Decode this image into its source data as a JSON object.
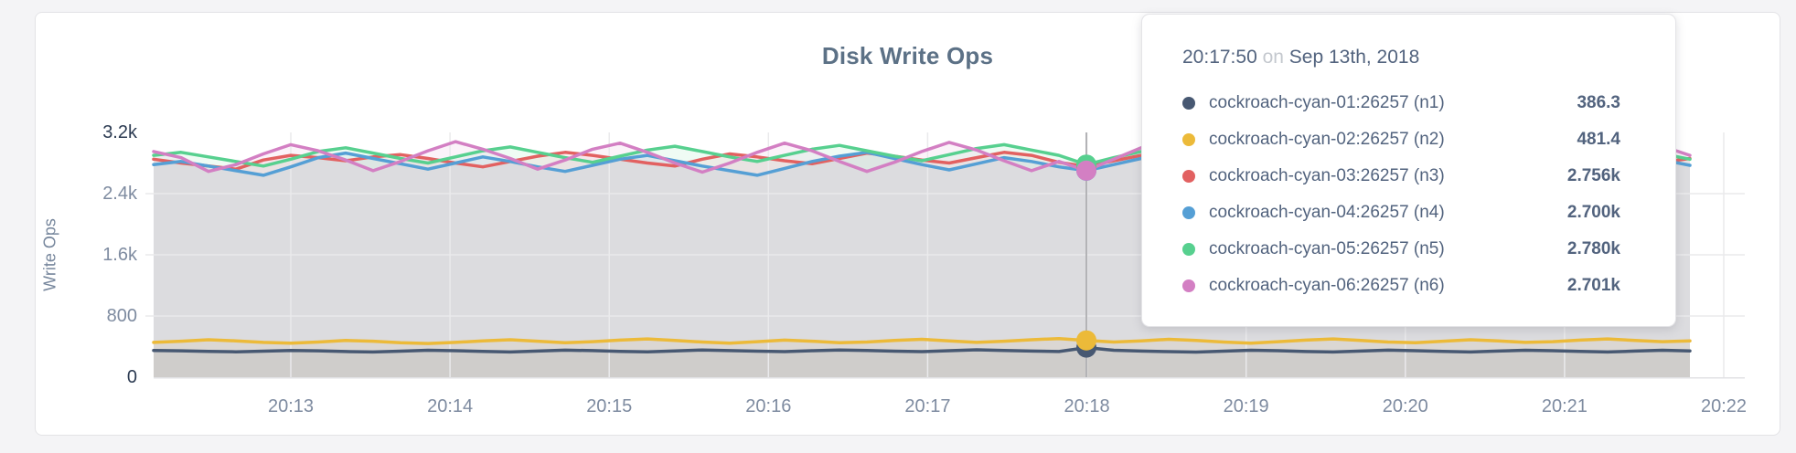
{
  "panel_title": "Disk Write Ops",
  "tooltip": {
    "time": "20:17:50",
    "on_word": "on",
    "date": "Sep 13th, 2018"
  },
  "chart_data": {
    "type": "line",
    "area": true,
    "title": "Disk Write Ops",
    "ylabel": "Write Ops",
    "ylim": [
      0,
      3200
    ],
    "grid": true,
    "yticks": [
      {
        "label": "3.2k",
        "value": 3200,
        "emph": true
      },
      {
        "label": "2.4k",
        "value": 2400,
        "emph": false
      },
      {
        "label": "1.6k",
        "value": 1600,
        "emph": false
      },
      {
        "label": "800",
        "value": 800,
        "emph": false
      },
      {
        "label": "0",
        "value": 0,
        "emph": true
      }
    ],
    "xticks": [
      "20:13",
      "20:14",
      "20:15",
      "20:16",
      "20:17",
      "20:18",
      "20:19",
      "20:20",
      "20:21",
      "20:22"
    ],
    "hover": {
      "index": 34,
      "time": "20:17:50",
      "date": "Sep 13th, 2018"
    },
    "series": [
      {
        "id": "n1",
        "name": "cockroach-cyan-01:26257 (n1)",
        "color": "#475872",
        "hover_display": "386.3",
        "hover_value": 386.3,
        "values": [
          350,
          345,
          338,
          332,
          340,
          350,
          345,
          336,
          330,
          340,
          352,
          346,
          338,
          330,
          342,
          354,
          348,
          338,
          332,
          344,
          356,
          348,
          340,
          334,
          346,
          356,
          350,
          340,
          334,
          346,
          358,
          350,
          342,
          336,
          386.3,
          352,
          342,
          334,
          328,
          340,
          352,
          346,
          336,
          330,
          342,
          354,
          346,
          338,
          330,
          342,
          352,
          346,
          338,
          330,
          342,
          352,
          344
        ]
      },
      {
        "id": "n2",
        "name": "cockroach-cyan-02:26257 (n2)",
        "color": "#ecba39",
        "hover_display": "481.4",
        "hover_value": 481.4,
        "values": [
          455,
          470,
          490,
          475,
          455,
          445,
          460,
          480,
          470,
          450,
          440,
          455,
          475,
          490,
          470,
          450,
          465,
          485,
          500,
          480,
          460,
          445,
          465,
          485,
          470,
          450,
          460,
          480,
          495,
          475,
          455,
          470,
          490,
          505,
          481.4,
          460,
          475,
          495,
          480,
          460,
          445,
          465,
          485,
          500,
          480,
          460,
          450,
          470,
          490,
          475,
          455,
          465,
          485,
          500,
          480,
          465,
          475
        ]
      },
      {
        "id": "n3",
        "name": "cockroach-cyan-03:26257 (n3)",
        "color": "#e26161",
        "hover_display": "2.756k",
        "hover_value": 2756,
        "values": [
          2850,
          2800,
          2760,
          2720,
          2840,
          2900,
          2870,
          2830,
          2880,
          2910,
          2860,
          2800,
          2750,
          2820,
          2890,
          2940,
          2900,
          2850,
          2800,
          2760,
          2850,
          2920,
          2880,
          2830,
          2790,
          2860,
          2930,
          2890,
          2840,
          2800,
          2870,
          2940,
          2900,
          2810,
          2756,
          2830,
          2900,
          2950,
          2880,
          2820,
          2770,
          2850,
          2920,
          2870,
          2810,
          2760,
          2840,
          2910,
          2860,
          2800,
          2750,
          2830,
          2900,
          2940,
          2870,
          2810,
          2860
        ]
      },
      {
        "id": "n4",
        "name": "cockroach-cyan-04:26257 (n4)",
        "color": "#559fd5",
        "hover_display": "2.700k",
        "hover_value": 2700,
        "values": [
          2780,
          2820,
          2760,
          2700,
          2640,
          2750,
          2870,
          2930,
          2860,
          2790,
          2720,
          2800,
          2880,
          2820,
          2750,
          2690,
          2770,
          2850,
          2900,
          2830,
          2760,
          2700,
          2640,
          2730,
          2820,
          2890,
          2940,
          2860,
          2780,
          2710,
          2790,
          2870,
          2820,
          2750,
          2700,
          2780,
          2860,
          2920,
          2850,
          2780,
          2720,
          2800,
          2880,
          2930,
          2860,
          2790,
          2730,
          2810,
          2890,
          2840,
          2770,
          2710,
          2790,
          2870,
          2910,
          2840,
          2770
        ]
      },
      {
        "id": "n5",
        "name": "cockroach-cyan-05:26257 (n5)",
        "color": "#57d08f",
        "hover_display": "2.780k",
        "hover_value": 2780,
        "values": [
          2900,
          2940,
          2880,
          2820,
          2760,
          2850,
          2950,
          3000,
          2930,
          2860,
          2800,
          2880,
          2960,
          3010,
          2940,
          2870,
          2810,
          2890,
          2970,
          3020,
          2950,
          2880,
          2820,
          2900,
          2980,
          3030,
          2960,
          2890,
          2830,
          2910,
          2990,
          3040,
          2970,
          2900,
          2780,
          2870,
          2950,
          3000,
          2930,
          2860,
          2800,
          2880,
          2960,
          3010,
          2940,
          2870,
          2810,
          2890,
          2970,
          2920,
          2850,
          2790,
          2870,
          2950,
          2990,
          2920,
          2850
        ]
      },
      {
        "id": "n6",
        "name": "cockroach-cyan-06:26257 (n6)",
        "color": "#d37fc3",
        "hover_display": "2.701k",
        "hover_value": 2701,
        "values": [
          2950,
          2870,
          2690,
          2780,
          2920,
          3040,
          2960,
          2840,
          2700,
          2820,
          2960,
          3080,
          2980,
          2860,
          2720,
          2840,
          2980,
          3060,
          2940,
          2800,
          2680,
          2800,
          2940,
          3060,
          2960,
          2820,
          2690,
          2810,
          2950,
          3070,
          2970,
          2830,
          2700,
          2820,
          2701,
          2850,
          3000,
          3090,
          2970,
          2830,
          2700,
          2830,
          2970,
          3080,
          2960,
          2820,
          2690,
          2820,
          2960,
          3050,
          2930,
          2790,
          2670,
          2800,
          2940,
          3020,
          2900
        ]
      }
    ]
  }
}
